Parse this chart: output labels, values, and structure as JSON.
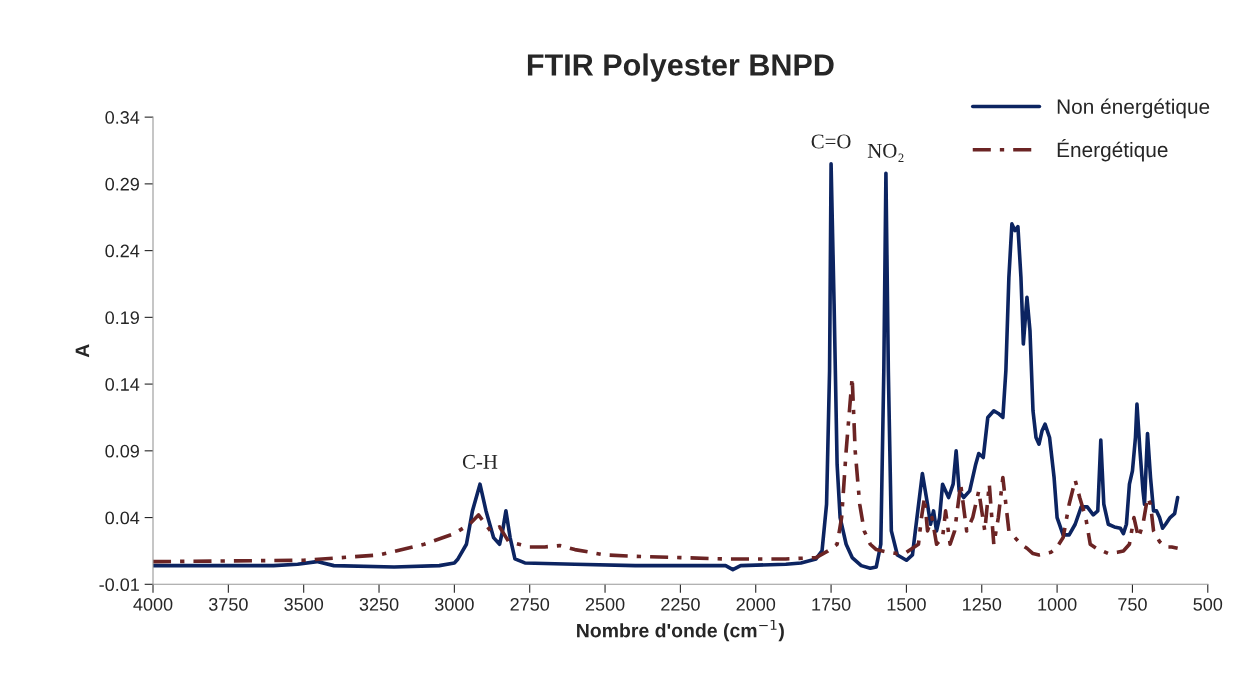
{
  "chart_data": {
    "type": "line",
    "title": "FTIR Polyester BNPD",
    "xlabel": "Nombre d'onde (cm$^{−1}$)",
    "ylabel": "A",
    "xlim": [
      4000,
      500
    ],
    "xticks": [
      4000,
      3750,
      3500,
      3250,
      3000,
      2750,
      2500,
      2250,
      2000,
      1750,
      1500,
      1250,
      1000,
      750,
      500
    ],
    "ylim": [
      -0.01,
      0.34
    ],
    "yticks": [
      -0.01,
      0.04,
      0.09,
      0.14,
      0.19,
      0.24,
      0.29,
      0.34
    ],
    "grid": false,
    "legend": "top right",
    "marker": "none",
    "annotations": [
      {
        "text": "C-H",
        "x": 2915,
        "y": 0.065
      },
      {
        "text": "C=O",
        "x": 1750,
        "y": 0.305
      },
      {
        "text": "NO₂",
        "x": 1568,
        "y": 0.298
      }
    ],
    "series": [
      {
        "name": "Non énergétique",
        "color": "#0c2461",
        "line_style": "solid",
        "x": [
          4000,
          3600,
          3520,
          3456,
          3400,
          3200,
          3050,
          3000,
          2988,
          2960,
          2940,
          2915,
          2895,
          2870,
          2850,
          2840,
          2829,
          2815,
          2799,
          2766,
          2600,
          2400,
          2200,
          2100,
          2076,
          2050,
          1900,
          1850,
          1800,
          1780,
          1765,
          1755,
          1750,
          1740,
          1730,
          1720,
          1700,
          1680,
          1650,
          1620,
          1600,
          1585,
          1575,
          1568,
          1560,
          1550,
          1530,
          1500,
          1480,
          1465,
          1447,
          1430,
          1420,
          1410,
          1400,
          1390,
          1380,
          1360,
          1345,
          1335,
          1325,
          1310,
          1290,
          1270,
          1260,
          1245,
          1230,
          1210,
          1195,
          1180,
          1170,
          1160,
          1150,
          1140,
          1130,
          1120,
          1112,
          1100,
          1090,
          1080,
          1070,
          1060,
          1050,
          1040,
          1025,
          1010,
          1000,
          980,
          960,
          940,
          920,
          900,
          880,
          865,
          855,
          845,
          830,
          810,
          790,
          780,
          770,
          760,
          750,
          740,
          735,
          725,
          715,
          710,
          700,
          690,
          680,
          670,
          660,
          650,
          640,
          625,
          610,
          600
        ],
        "values": [
          0.004,
          0.004,
          0.005,
          0.007,
          0.004,
          0.003,
          0.004,
          0.006,
          0.009,
          0.02,
          0.045,
          0.065,
          0.045,
          0.025,
          0.02,
          0.03,
          0.045,
          0.025,
          0.009,
          0.006,
          0.005,
          0.004,
          0.004,
          0.004,
          0.001,
          0.004,
          0.005,
          0.006,
          0.009,
          0.015,
          0.05,
          0.15,
          0.305,
          0.2,
          0.08,
          0.04,
          0.02,
          0.01,
          0.004,
          0.002,
          0.003,
          0.02,
          0.15,
          0.298,
          0.15,
          0.03,
          0.012,
          0.008,
          0.012,
          0.04,
          0.073,
          0.05,
          0.035,
          0.045,
          0.03,
          0.04,
          0.065,
          0.055,
          0.065,
          0.09,
          0.06,
          0.055,
          0.06,
          0.08,
          0.088,
          0.085,
          0.115,
          0.12,
          0.118,
          0.115,
          0.15,
          0.22,
          0.26,
          0.255,
          0.258,
          0.22,
          0.17,
          0.205,
          0.18,
          0.12,
          0.1,
          0.095,
          0.105,
          0.11,
          0.1,
          0.07,
          0.04,
          0.027,
          0.027,
          0.035,
          0.048,
          0.048,
          0.042,
          0.045,
          0.098,
          0.05,
          0.035,
          0.033,
          0.032,
          0.028,
          0.035,
          0.065,
          0.075,
          0.1,
          0.125,
          0.09,
          0.06,
          0.05,
          0.103,
          0.07,
          0.045,
          0.045,
          0.04,
          0.032,
          0.035,
          0.04,
          0.043,
          0.055
        ]
      },
      {
        "name": "Énergétique",
        "color": "#6b2424",
        "line_style": "dashdot",
        "x": [
          4000,
          3500,
          3250,
          3100,
          3000,
          2950,
          2920,
          2880,
          2850,
          2820,
          2750,
          2700,
          2650,
          2600,
          2500,
          2400,
          2250,
          2100,
          2000,
          1900,
          1800,
          1760,
          1730,
          1715,
          1700,
          1680,
          1670,
          1655,
          1640,
          1620,
          1600,
          1560,
          1530,
          1500,
          1460,
          1450,
          1440,
          1430,
          1415,
          1400,
          1380,
          1370,
          1355,
          1340,
          1320,
          1300,
          1280,
          1260,
          1240,
          1225,
          1210,
          1195,
          1180,
          1160,
          1140,
          1120,
          1100,
          1080,
          1060,
          1040,
          1020,
          1000,
          980,
          960,
          940,
          925,
          905,
          890,
          870,
          850,
          830,
          800,
          780,
          760,
          745,
          730,
          715,
          700,
          690,
          680,
          660,
          640,
          620,
          600
        ],
        "values": [
          0.007,
          0.008,
          0.012,
          0.02,
          0.028,
          0.035,
          0.042,
          0.03,
          0.033,
          0.022,
          0.018,
          0.018,
          0.019,
          0.016,
          0.012,
          0.011,
          0.01,
          0.009,
          0.009,
          0.009,
          0.01,
          0.015,
          0.02,
          0.04,
          0.09,
          0.145,
          0.09,
          0.05,
          0.03,
          0.02,
          0.016,
          0.014,
          0.013,
          0.014,
          0.02,
          0.04,
          0.055,
          0.03,
          0.04,
          0.02,
          0.025,
          0.045,
          0.02,
          0.03,
          0.065,
          0.03,
          0.04,
          0.06,
          0.03,
          0.065,
          0.02,
          0.04,
          0.07,
          0.03,
          0.025,
          0.02,
          0.017,
          0.013,
          0.012,
          0.013,
          0.014,
          0.018,
          0.025,
          0.05,
          0.068,
          0.055,
          0.04,
          0.02,
          0.017,
          0.015,
          0.013,
          0.014,
          0.015,
          0.02,
          0.04,
          0.025,
          0.035,
          0.055,
          0.05,
          0.03,
          0.022,
          0.018,
          0.018,
          0.017
        ]
      }
    ]
  }
}
